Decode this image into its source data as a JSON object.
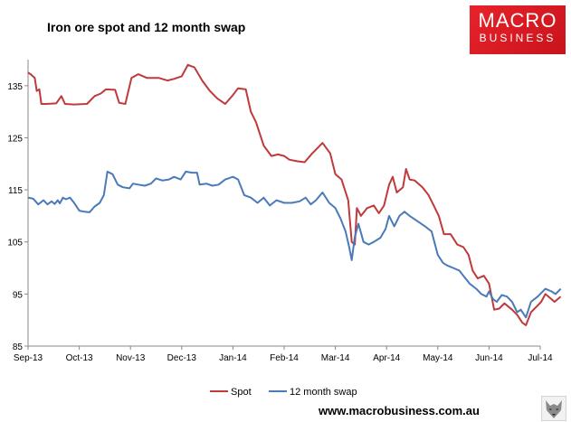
{
  "brand": {
    "logo_line1": "MACRO",
    "logo_line2": "BUSINESS",
    "website": "www.macrobusiness.com.au",
    "logo_color": "#e41e26"
  },
  "chart_data": {
    "type": "line",
    "title": "Iron ore spot and 12 month swap",
    "xlabel": "",
    "ylabel": "",
    "ylim": [
      85,
      140
    ],
    "yticks": [
      85,
      95,
      105,
      115,
      125,
      135
    ],
    "xticks": [
      "Sep-13",
      "Oct-13",
      "Nov-13",
      "Dec-13",
      "Jan-14",
      "Feb-14",
      "Mar-14",
      "Apr-14",
      "May-14",
      "Jun-14",
      "Jul-14"
    ],
    "grid": false,
    "legend_position": "bottom",
    "series": [
      {
        "name": "Spot",
        "color": "#c0393b",
        "points": [
          [
            0,
            137.5
          ],
          [
            0.05,
            137.2
          ],
          [
            0.13,
            136.5
          ],
          [
            0.17,
            134
          ],
          [
            0.22,
            134.3
          ],
          [
            0.26,
            131.5
          ],
          [
            0.35,
            131.5
          ],
          [
            0.55,
            131.6
          ],
          [
            0.65,
            133
          ],
          [
            0.72,
            131.5
          ],
          [
            0.9,
            131.4
          ],
          [
            1.15,
            131.5
          ],
          [
            1.3,
            133
          ],
          [
            1.42,
            133.5
          ],
          [
            1.52,
            134.3
          ],
          [
            1.7,
            134.2
          ],
          [
            1.78,
            131.7
          ],
          [
            1.9,
            131.5
          ],
          [
            2.02,
            136.5
          ],
          [
            2.15,
            137.2
          ],
          [
            2.32,
            136.5
          ],
          [
            2.55,
            136.5
          ],
          [
            2.72,
            136
          ],
          [
            2.85,
            136.3
          ],
          [
            3.0,
            136.8
          ],
          [
            3.12,
            139
          ],
          [
            3.25,
            138.5
          ],
          [
            3.4,
            136
          ],
          [
            3.55,
            134
          ],
          [
            3.7,
            132.5
          ],
          [
            3.85,
            131.5
          ],
          [
            4.0,
            133.2
          ],
          [
            4.1,
            134.5
          ],
          [
            4.25,
            134.3
          ],
          [
            4.35,
            130
          ],
          [
            4.45,
            128
          ],
          [
            4.6,
            123.5
          ],
          [
            4.75,
            121.5
          ],
          [
            4.88,
            121.8
          ],
          [
            5.0,
            121.5
          ],
          [
            5.1,
            120.8
          ],
          [
            5.25,
            120.5
          ],
          [
            5.4,
            120.3
          ],
          [
            5.55,
            122
          ],
          [
            5.75,
            124
          ],
          [
            5.9,
            122
          ],
          [
            6.0,
            118
          ],
          [
            6.12,
            117
          ],
          [
            6.25,
            113
          ],
          [
            6.32,
            105
          ],
          [
            6.38,
            104.5
          ],
          [
            6.42,
            111.5
          ],
          [
            6.5,
            110
          ],
          [
            6.62,
            111.5
          ],
          [
            6.75,
            112
          ],
          [
            6.85,
            110.5
          ],
          [
            6.95,
            112
          ],
          [
            7.05,
            116
          ],
          [
            7.12,
            117.5
          ],
          [
            7.2,
            114.5
          ],
          [
            7.32,
            115.5
          ],
          [
            7.38,
            119
          ],
          [
            7.45,
            117
          ],
          [
            7.55,
            116.8
          ],
          [
            7.7,
            115.5
          ],
          [
            7.82,
            114
          ],
          [
            7.92,
            112
          ],
          [
            8.02,
            110
          ],
          [
            8.12,
            106.5
          ],
          [
            8.25,
            106.5
          ],
          [
            8.38,
            104.5
          ],
          [
            8.5,
            104
          ],
          [
            8.6,
            102.5
          ],
          [
            8.68,
            99.5
          ],
          [
            8.78,
            98
          ],
          [
            8.9,
            98.5
          ],
          [
            9.0,
            97
          ],
          [
            9.1,
            92
          ],
          [
            9.2,
            92.2
          ],
          [
            9.3,
            93.2
          ],
          [
            9.45,
            92
          ],
          [
            9.55,
            91
          ],
          [
            9.65,
            89.5
          ],
          [
            9.72,
            89
          ],
          [
            9.82,
            91.5
          ],
          [
            9.92,
            92.5
          ],
          [
            10.02,
            93.5
          ],
          [
            10.1,
            95
          ],
          [
            10.22,
            94
          ],
          [
            10.28,
            93.5
          ],
          [
            10.4,
            94.5
          ]
        ]
      },
      {
        "name": "12 month swap",
        "color": "#4a7ab8",
        "points": [
          [
            0,
            113.5
          ],
          [
            0.1,
            113.3
          ],
          [
            0.2,
            112.2
          ],
          [
            0.3,
            113
          ],
          [
            0.38,
            112.2
          ],
          [
            0.46,
            112.8
          ],
          [
            0.52,
            112.3
          ],
          [
            0.58,
            113
          ],
          [
            0.62,
            112.4
          ],
          [
            0.68,
            113.5
          ],
          [
            0.74,
            113.2
          ],
          [
            0.82,
            113.5
          ],
          [
            0.9,
            112.5
          ],
          [
            1.0,
            111
          ],
          [
            1.1,
            110.8
          ],
          [
            1.2,
            110.7
          ],
          [
            1.3,
            111.8
          ],
          [
            1.4,
            112.5
          ],
          [
            1.48,
            114
          ],
          [
            1.55,
            118.5
          ],
          [
            1.65,
            118
          ],
          [
            1.75,
            116
          ],
          [
            1.85,
            115.5
          ],
          [
            1.98,
            115.3
          ],
          [
            2.05,
            116.2
          ],
          [
            2.15,
            116
          ],
          [
            2.28,
            115.8
          ],
          [
            2.4,
            116.2
          ],
          [
            2.5,
            117.2
          ],
          [
            2.62,
            116.8
          ],
          [
            2.75,
            117
          ],
          [
            2.85,
            117.5
          ],
          [
            2.98,
            117
          ],
          [
            3.08,
            118.5
          ],
          [
            3.2,
            118.3
          ],
          [
            3.3,
            118.3
          ],
          [
            3.35,
            116
          ],
          [
            3.48,
            116.2
          ],
          [
            3.6,
            115.8
          ],
          [
            3.72,
            116
          ],
          [
            3.85,
            117
          ],
          [
            4.0,
            117.5
          ],
          [
            4.1,
            117
          ],
          [
            4.22,
            114
          ],
          [
            4.35,
            113.5
          ],
          [
            4.48,
            112.5
          ],
          [
            4.6,
            113.5
          ],
          [
            4.72,
            112
          ],
          [
            4.85,
            113
          ],
          [
            5.0,
            112.5
          ],
          [
            5.15,
            112.5
          ],
          [
            5.3,
            112.8
          ],
          [
            5.42,
            113.5
          ],
          [
            5.52,
            112.2
          ],
          [
            5.62,
            113
          ],
          [
            5.75,
            114.5
          ],
          [
            5.88,
            112.5
          ],
          [
            6.0,
            111.5
          ],
          [
            6.1,
            109.5
          ],
          [
            6.2,
            107
          ],
          [
            6.27,
            104
          ],
          [
            6.32,
            101.5
          ],
          [
            6.38,
            106
          ],
          [
            6.45,
            108.5
          ],
          [
            6.55,
            105
          ],
          [
            6.65,
            104.5
          ],
          [
            6.75,
            105
          ],
          [
            6.88,
            105.8
          ],
          [
            6.98,
            107.5
          ],
          [
            7.05,
            110
          ],
          [
            7.15,
            108
          ],
          [
            7.25,
            110
          ],
          [
            7.35,
            110.8
          ],
          [
            7.45,
            110
          ],
          [
            7.6,
            109
          ],
          [
            7.75,
            108
          ],
          [
            7.88,
            107
          ],
          [
            8.0,
            102.5
          ],
          [
            8.1,
            101
          ],
          [
            8.18,
            100.5
          ],
          [
            8.3,
            100
          ],
          [
            8.42,
            99.5
          ],
          [
            8.5,
            98.5
          ],
          [
            8.62,
            97
          ],
          [
            8.75,
            96
          ],
          [
            8.85,
            95
          ],
          [
            8.95,
            94.5
          ],
          [
            9.0,
            95.5
          ],
          [
            9.08,
            94
          ],
          [
            9.15,
            93.5
          ],
          [
            9.25,
            94.8
          ],
          [
            9.35,
            94.5
          ],
          [
            9.45,
            93.5
          ],
          [
            9.55,
            91.5
          ],
          [
            9.62,
            92
          ],
          [
            9.72,
            90.5
          ],
          [
            9.82,
            93.5
          ],
          [
            9.95,
            94.5
          ],
          [
            10.1,
            96
          ],
          [
            10.22,
            95.5
          ],
          [
            10.3,
            95
          ],
          [
            10.4,
            96
          ]
        ]
      }
    ]
  }
}
